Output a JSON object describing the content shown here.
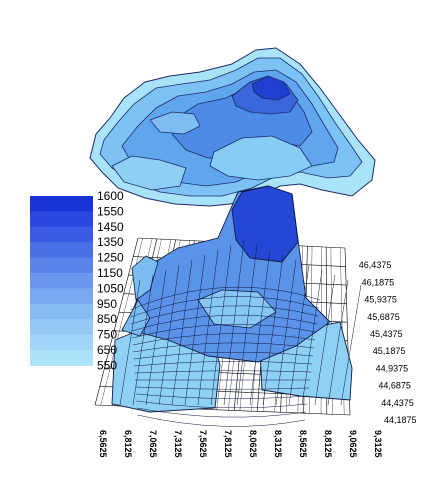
{
  "chart_data": {
    "type": "surface-3d-with-contour",
    "title": "",
    "xlabel": "",
    "ylabel": "",
    "zlabel": "",
    "x_ticks": [
      "6,5625",
      "6,8125",
      "7,0625",
      "7,3125",
      "7,5625",
      "7,8125",
      "8,0625",
      "8,3125",
      "8,5625",
      "8,8125",
      "9,0625",
      "9,3125"
    ],
    "y_ticks": [
      "44,1875",
      "44,4375",
      "44,6875",
      "44,9375",
      "45,1875",
      "45,4375",
      "45,6875",
      "45,9375",
      "46,1875",
      "46,4375"
    ],
    "xlim": [
      6.5625,
      9.3125
    ],
    "ylim": [
      44.1875,
      46.4375
    ],
    "legend": {
      "placement": "left",
      "levels": [
        "1600",
        "1550",
        "1450",
        "1350",
        "1250",
        "1150",
        "1050",
        "950",
        "850",
        "750",
        "650",
        "550"
      ],
      "colors": [
        "#1a33d6",
        "#2a48dd",
        "#3a5ce2",
        "#4a70e6",
        "#5a84ea",
        "#6a98ee",
        "#79aaf1",
        "#87bbf4",
        "#94c9f6",
        "#a0d6f8",
        "#ace2fa"
      ]
    }
  }
}
